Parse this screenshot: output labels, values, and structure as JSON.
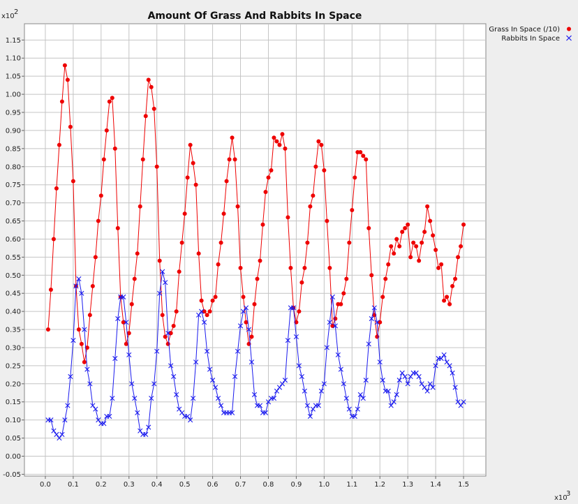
{
  "chart_data": {
    "type": "scatter",
    "title": "Amount Of Grass And Rabbits In Space",
    "xlabel": "",
    "ylabel": "",
    "x_multiplier_label": "x10",
    "x_multiplier_exp": "3",
    "y_multiplier_label": "x10",
    "y_multiplier_exp": "2",
    "xlim": [
      -0.075,
      1.58
    ],
    "ylim": [
      -0.055,
      1.195
    ],
    "x_ticks": [
      0.0,
      0.1,
      0.2,
      0.3,
      0.4,
      0.5,
      0.6,
      0.7,
      0.8,
      0.9,
      1.0,
      1.1,
      1.2,
      1.3,
      1.4,
      1.5
    ],
    "x_tick_labels": [
      "0.0",
      "0.1",
      "0.2",
      "0.3",
      "0.4",
      "0.5",
      "0.6",
      "0.7",
      "0.8",
      "0.9",
      "1.0",
      "1.1",
      "1.2",
      "1.3",
      "1.4",
      "1.5"
    ],
    "y_ticks": [
      -0.05,
      0.0,
      0.05,
      0.1,
      0.15,
      0.2,
      0.25,
      0.3,
      0.35,
      0.4,
      0.45,
      0.5,
      0.55,
      0.6,
      0.65,
      0.7,
      0.75,
      0.8,
      0.85,
      0.9,
      0.95,
      1.0,
      1.05,
      1.1,
      1.15
    ],
    "y_tick_labels": [
      "-0.05",
      "0.00",
      "0.05",
      "0.10",
      "0.15",
      "0.20",
      "0.25",
      "0.30",
      "0.35",
      "0.40",
      "0.45",
      "0.50",
      "0.55",
      "0.60",
      "0.65",
      "0.70",
      "0.75",
      "0.80",
      "0.85",
      "0.90",
      "0.95",
      "1.00",
      "1.05",
      "1.10",
      "1.15"
    ],
    "grid": true,
    "legend_position": "top-right",
    "series": [
      {
        "name": "Grass In Space (/10)",
        "color": "#ee0000",
        "marker": "circle",
        "connected": true,
        "x": [
          0.01,
          0.02,
          0.03,
          0.04,
          0.05,
          0.06,
          0.07,
          0.08,
          0.09,
          0.1,
          0.11,
          0.12,
          0.13,
          0.14,
          0.15,
          0.16,
          0.17,
          0.18,
          0.19,
          0.2,
          0.21,
          0.22,
          0.23,
          0.24,
          0.25,
          0.26,
          0.27,
          0.28,
          0.29,
          0.3,
          0.31,
          0.32,
          0.33,
          0.34,
          0.35,
          0.36,
          0.37,
          0.38,
          0.39,
          0.4,
          0.41,
          0.42,
          0.43,
          0.44,
          0.45,
          0.46,
          0.47,
          0.48,
          0.49,
          0.5,
          0.51,
          0.52,
          0.53,
          0.54,
          0.55,
          0.56,
          0.57,
          0.58,
          0.59,
          0.6,
          0.61,
          0.62,
          0.63,
          0.64,
          0.65,
          0.66,
          0.67,
          0.68,
          0.69,
          0.7,
          0.71,
          0.72,
          0.73,
          0.74,
          0.75,
          0.76,
          0.77,
          0.78,
          0.79,
          0.8,
          0.81,
          0.82,
          0.83,
          0.84,
          0.85,
          0.86,
          0.87,
          0.88,
          0.89,
          0.9,
          0.91,
          0.92,
          0.93,
          0.94,
          0.95,
          0.96,
          0.97,
          0.98,
          0.99,
          1.0,
          1.01,
          1.02,
          1.03,
          1.04,
          1.05,
          1.06,
          1.07,
          1.08,
          1.09,
          1.1,
          1.11,
          1.12,
          1.13,
          1.14,
          1.15,
          1.16,
          1.17,
          1.18,
          1.19,
          1.2,
          1.21,
          1.22,
          1.23,
          1.24,
          1.25,
          1.26,
          1.27,
          1.28,
          1.29,
          1.3,
          1.31,
          1.32,
          1.33,
          1.34,
          1.35,
          1.36,
          1.37,
          1.38,
          1.39,
          1.4,
          1.41,
          1.42,
          1.43,
          1.44,
          1.45,
          1.46,
          1.47,
          1.48,
          1.49,
          1.5
        ],
        "y": [
          0.35,
          0.46,
          0.6,
          0.74,
          0.86,
          0.98,
          1.08,
          1.04,
          0.91,
          0.76,
          0.47,
          0.35,
          0.31,
          0.26,
          0.3,
          0.39,
          0.47,
          0.55,
          0.65,
          0.72,
          0.82,
          0.9,
          0.98,
          0.99,
          0.85,
          0.63,
          0.44,
          0.37,
          0.31,
          0.34,
          0.42,
          0.49,
          0.56,
          0.69,
          0.82,
          0.94,
          1.04,
          1.02,
          0.96,
          0.8,
          0.54,
          0.39,
          0.33,
          0.31,
          0.34,
          0.36,
          0.4,
          0.51,
          0.59,
          0.67,
          0.77,
          0.86,
          0.81,
          0.75,
          0.56,
          0.43,
          0.4,
          0.39,
          0.4,
          0.43,
          0.44,
          0.53,
          0.59,
          0.67,
          0.76,
          0.82,
          0.88,
          0.82,
          0.69,
          0.52,
          0.44,
          0.37,
          0.31,
          0.33,
          0.42,
          0.49,
          0.54,
          0.64,
          0.73,
          0.77,
          0.79,
          0.88,
          0.87,
          0.86,
          0.89,
          0.85,
          0.66,
          0.52,
          0.41,
          0.37,
          0.4,
          0.48,
          0.52,
          0.59,
          0.69,
          0.72,
          0.8,
          0.87,
          0.86,
          0.79,
          0.65,
          0.52,
          0.36,
          0.38,
          0.42,
          0.42,
          0.45,
          0.49,
          0.59,
          0.68,
          0.77,
          0.84,
          0.84,
          0.83,
          0.82,
          0.63,
          0.5,
          0.39,
          0.33,
          0.37,
          0.44,
          0.49,
          0.53,
          0.58,
          0.56,
          0.6,
          0.58,
          0.62,
          0.63,
          0.64,
          0.55,
          0.59,
          0.58,
          0.54,
          0.59,
          0.62,
          0.69,
          0.65,
          0.61,
          0.57,
          0.52,
          0.53,
          0.43,
          0.44,
          0.42,
          0.47,
          0.49,
          0.55,
          0.58,
          0.64
        ]
      },
      {
        "name": "Rabbits In Space",
        "color": "#1a1aee",
        "marker": "x",
        "connected": true,
        "x": [
          0.01,
          0.02,
          0.03,
          0.04,
          0.05,
          0.06,
          0.07,
          0.08,
          0.09,
          0.1,
          0.11,
          0.12,
          0.13,
          0.14,
          0.15,
          0.16,
          0.17,
          0.18,
          0.19,
          0.2,
          0.21,
          0.22,
          0.23,
          0.24,
          0.25,
          0.26,
          0.27,
          0.28,
          0.29,
          0.3,
          0.31,
          0.32,
          0.33,
          0.34,
          0.35,
          0.36,
          0.37,
          0.38,
          0.39,
          0.4,
          0.41,
          0.42,
          0.43,
          0.44,
          0.45,
          0.46,
          0.47,
          0.48,
          0.49,
          0.5,
          0.51,
          0.52,
          0.53,
          0.54,
          0.55,
          0.56,
          0.57,
          0.58,
          0.59,
          0.6,
          0.61,
          0.62,
          0.63,
          0.64,
          0.65,
          0.66,
          0.67,
          0.68,
          0.69,
          0.7,
          0.71,
          0.72,
          0.73,
          0.74,
          0.75,
          0.76,
          0.77,
          0.78,
          0.79,
          0.8,
          0.81,
          0.82,
          0.83,
          0.84,
          0.85,
          0.86,
          0.87,
          0.88,
          0.89,
          0.9,
          0.91,
          0.92,
          0.93,
          0.94,
          0.95,
          0.96,
          0.97,
          0.98,
          0.99,
          1.0,
          1.01,
          1.02,
          1.03,
          1.04,
          1.05,
          1.06,
          1.07,
          1.08,
          1.09,
          1.1,
          1.11,
          1.12,
          1.13,
          1.14,
          1.15,
          1.16,
          1.17,
          1.18,
          1.19,
          1.2,
          1.21,
          1.22,
          1.23,
          1.24,
          1.25,
          1.26,
          1.27,
          1.28,
          1.29,
          1.3,
          1.31,
          1.32,
          1.33,
          1.34,
          1.35,
          1.36,
          1.37,
          1.38,
          1.39,
          1.4,
          1.41,
          1.42,
          1.43,
          1.44,
          1.45,
          1.46,
          1.47,
          1.48,
          1.49,
          1.5
        ],
        "y": [
          0.1,
          0.1,
          0.07,
          0.06,
          0.05,
          0.06,
          0.1,
          0.14,
          0.22,
          0.32,
          0.47,
          0.49,
          0.45,
          0.35,
          0.24,
          0.2,
          0.14,
          0.13,
          0.1,
          0.09,
          0.09,
          0.11,
          0.11,
          0.16,
          0.27,
          0.38,
          0.44,
          0.44,
          0.37,
          0.28,
          0.2,
          0.16,
          0.12,
          0.07,
          0.06,
          0.06,
          0.08,
          0.16,
          0.2,
          0.29,
          0.45,
          0.51,
          0.48,
          0.34,
          0.25,
          0.22,
          0.17,
          0.13,
          0.12,
          0.11,
          0.11,
          0.1,
          0.16,
          0.26,
          0.39,
          0.4,
          0.37,
          0.29,
          0.24,
          0.21,
          0.19,
          0.16,
          0.14,
          0.12,
          0.12,
          0.12,
          0.12,
          0.22,
          0.29,
          0.36,
          0.4,
          0.41,
          0.35,
          0.26,
          0.17,
          0.14,
          0.14,
          0.12,
          0.12,
          0.15,
          0.16,
          0.16,
          0.18,
          0.19,
          0.2,
          0.21,
          0.32,
          0.41,
          0.41,
          0.33,
          0.25,
          0.22,
          0.18,
          0.14,
          0.11,
          0.13,
          0.14,
          0.14,
          0.18,
          0.2,
          0.3,
          0.37,
          0.44,
          0.36,
          0.28,
          0.24,
          0.2,
          0.16,
          0.13,
          0.11,
          0.11,
          0.13,
          0.17,
          0.16,
          0.21,
          0.31,
          0.38,
          0.41,
          0.37,
          0.26,
          0.21,
          0.18,
          0.18,
          0.14,
          0.15,
          0.17,
          0.21,
          0.23,
          0.22,
          0.2,
          0.22,
          0.23,
          0.23,
          0.22,
          0.2,
          0.19,
          0.18,
          0.2,
          0.19,
          0.25,
          0.27,
          0.27,
          0.28,
          0.26,
          0.25,
          0.23,
          0.19,
          0.15,
          0.14,
          0.15
        ]
      }
    ]
  }
}
